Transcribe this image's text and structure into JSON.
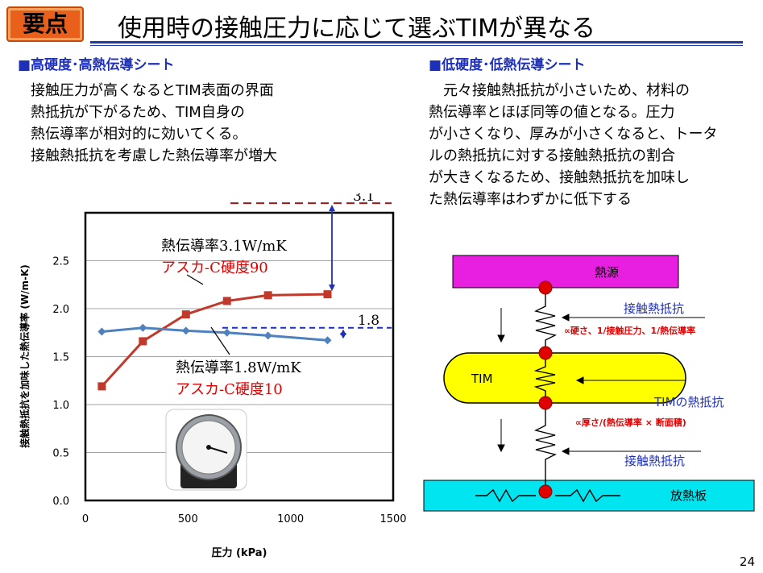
{
  "header": {
    "badge": "要点",
    "title": "使用時の接触圧力に応じて選ぶTIMが異なる"
  },
  "left_section": {
    "heading": "■高硬度･高熱伝導シート",
    "lines": [
      "接触圧力が高くなるとTIM表面の界面",
      "熱抵抗が下がるため、TIM自身の",
      "熱伝導率が相対的に効いてくる。",
      "接触熱抵抗を考慮した熱伝導率が増大"
    ]
  },
  "right_section": {
    "heading": "■低硬度･低熱伝導シート",
    "lines": [
      "　元々接触熱抵抗が小さいため、材料の",
      "熱伝導率とほぼ同等の値となる。圧力",
      "が小さくなり、厚みが小さくなると、トータ",
      "ルの熱抵抗に対する接触熱抵抗の割合",
      "が大きくなるため、接触熱抵抗を加味し",
      "た熱伝導率はわずかに低下する"
    ]
  },
  "chart_data": {
    "type": "line",
    "xlabel": "圧力 (kPa)",
    "ylabel": "接触熱抵抗を加味した熱伝導率 (W/m-K)",
    "xlim": [
      0,
      1500
    ],
    "ylim": [
      0,
      2.5
    ],
    "xticks": [
      "0",
      "500",
      "1000",
      "1500"
    ],
    "yticks": [
      "0.0",
      "0.5",
      "1.0",
      "1.5",
      "2.0",
      "2.5"
    ],
    "grid": true,
    "series": [
      {
        "name": "熱伝導率3.1W/mK アスカ-C硬度90",
        "color": "#c0392b",
        "marker": "square",
        "x": [
          80,
          280,
          490,
          690,
          890,
          1180
        ],
        "y": [
          1.19,
          1.66,
          1.94,
          2.08,
          2.14,
          2.15
        ]
      },
      {
        "name": "熱伝導率1.8W/mK アスカ-C硬度10",
        "color": "#4f81bd",
        "marker": "diamond",
        "x": [
          80,
          280,
          490,
          690,
          890,
          1180
        ],
        "y": [
          1.76,
          1.8,
          1.77,
          1.75,
          1.72,
          1.67
        ]
      }
    ],
    "annotations": {
      "ref_high": "3.1",
      "ref_low": "1.8",
      "label_a1": "熱伝導率3.1W/mK",
      "label_a2": "アスカ-C硬度90",
      "label_b1": "熱伝導率1.8W/mK",
      "label_b2": "アスカ-C硬度10"
    }
  },
  "diagram": {
    "heat_source": "熱源",
    "tim": "TIM",
    "heatsink": "放熱板",
    "contact_resistance_top": "接触熱抵抗",
    "contact_formula": "∝硬さ、1/接触圧力、1/熱伝導率",
    "tim_resistance": "TIMの熱抵抗",
    "tim_formula": "∝厚さ/(熱伝導率 × 断面積)",
    "contact_resistance_bottom": "接触熱抵抗"
  },
  "page_number": "24",
  "colors": {
    "title_rule": "#1f3da0",
    "heading_blue": "#1f30b8",
    "red": "#e00000",
    "magenta": "#e81ee0",
    "yellow": "#ffff00",
    "cyan": "#00e5f0"
  }
}
